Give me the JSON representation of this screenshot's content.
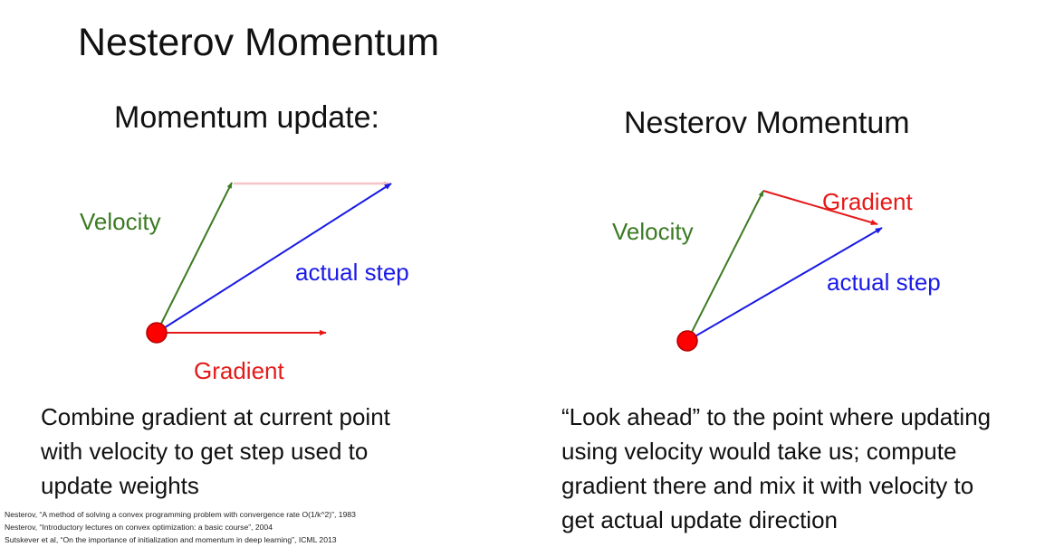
{
  "title": "Nesterov Momentum",
  "left": {
    "heading": "Momentum update:",
    "labels": {
      "velocity": "Velocity",
      "actual_step": "actual step",
      "gradient": "Gradient"
    },
    "body": [
      "Combine gradient at current point",
      "with velocity to get step used to",
      "update weights"
    ]
  },
  "right": {
    "heading": "Nesterov Momentum",
    "labels": {
      "velocity": "Velocity",
      "gradient": "Gradient",
      "actual_step": "actual step"
    },
    "body": [
      "“Look ahead” to the point where updating",
      "using velocity would take us; compute",
      "gradient there and mix it with velocity to",
      "get actual update direction"
    ]
  },
  "references": [
    "Nesterov, “A method of solving a convex programming problem with convergence rate O(1/k^2)”, 1983",
    "Nesterov, “Introductory lectures on convex optimization: a basic course”, 2004",
    "Sutskever et al, “On the importance of initialization and momentum in deep learning”, ICML 2013"
  ],
  "colors": {
    "velocity": "#3b7a23",
    "gradient": "#e61919",
    "actual_step": "#1a1ae6",
    "faded_gradient": "#f2c4c4",
    "point_fill": "#ff0000",
    "point_stroke": "#b00000"
  }
}
